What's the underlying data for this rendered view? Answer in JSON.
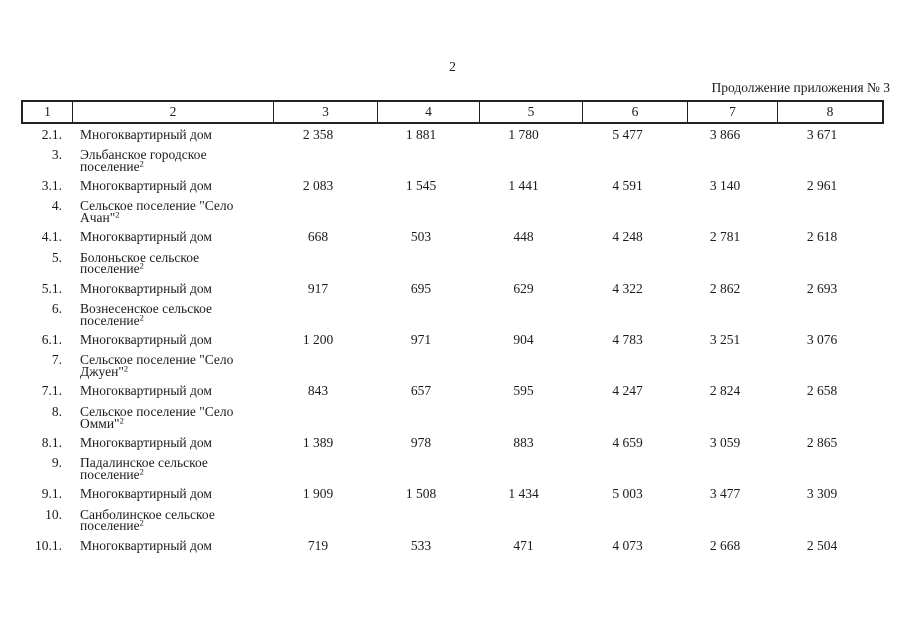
{
  "page": {
    "number": "2",
    "continuation_label": "Продолжение приложения № 3"
  },
  "table": {
    "column_numbers": [
      "1",
      "2",
      "3",
      "4",
      "5",
      "6",
      "7",
      "8"
    ],
    "rows": [
      {
        "num": "2.1.",
        "name": "Многоквартирный дом",
        "footnote": "",
        "values": [
          "2 358",
          "1 881",
          "1 780",
          "5 477",
          "3 866",
          "3 671"
        ]
      },
      {
        "num": "3.",
        "name": "Эльбанское городское поселение",
        "footnote": "2",
        "values": [
          "",
          "",
          "",
          "",
          "",
          ""
        ]
      },
      {
        "num": "3.1.",
        "name": "Многоквартирный дом",
        "footnote": "",
        "values": [
          "2 083",
          "1 545",
          "1 441",
          "4 591",
          "3 140",
          "2 961"
        ]
      },
      {
        "num": "4.",
        "name": "Сельское поселение \"Село Ачан\"",
        "footnote": "2",
        "values": [
          "",
          "",
          "",
          "",
          "",
          ""
        ]
      },
      {
        "num": "4.1.",
        "name": "Многоквартирный дом",
        "footnote": "",
        "values": [
          "668",
          "503",
          "448",
          "4 248",
          "2 781",
          "2 618"
        ]
      },
      {
        "num": "5.",
        "name": "Болоньское сельское поселение",
        "footnote": "2",
        "values": [
          "",
          "",
          "",
          "",
          "",
          ""
        ]
      },
      {
        "num": "5.1.",
        "name": "Многоквартирный дом",
        "footnote": "",
        "values": [
          "917",
          "695",
          "629",
          "4 322",
          "2 862",
          "2 693"
        ]
      },
      {
        "num": "6.",
        "name": "Вознесенское сельское поселение",
        "footnote": "2",
        "values": [
          "",
          "",
          "",
          "",
          "",
          ""
        ]
      },
      {
        "num": "6.1.",
        "name": "Многоквартирный дом",
        "footnote": "",
        "values": [
          "1 200",
          "971",
          "904",
          "4 783",
          "3 251",
          "3 076"
        ]
      },
      {
        "num": "7.",
        "name": "Сельское поселение \"Село Джуен\"",
        "footnote": "2",
        "values": [
          "",
          "",
          "",
          "",
          "",
          ""
        ]
      },
      {
        "num": "7.1.",
        "name": "Многоквартирный дом",
        "footnote": "",
        "values": [
          "843",
          "657",
          "595",
          "4 247",
          "2 824",
          "2 658"
        ]
      },
      {
        "num": "8.",
        "name": "Сельское поселение \"Село Омми\"",
        "footnote": "2",
        "values": [
          "",
          "",
          "",
          "",
          "",
          ""
        ]
      },
      {
        "num": "8.1.",
        "name": "Многоквартирный дом",
        "footnote": "",
        "values": [
          "1 389",
          "978",
          "883",
          "4 659",
          "3 059",
          "2 865"
        ]
      },
      {
        "num": "9.",
        "name": "Падалинское сельское поселение",
        "footnote": "2",
        "values": [
          "",
          "",
          "",
          "",
          "",
          ""
        ]
      },
      {
        "num": "9.1.",
        "name": "Многоквартирный дом",
        "footnote": "",
        "values": [
          "1 909",
          "1 508",
          "1 434",
          "5 003",
          "3 477",
          "3 309"
        ]
      },
      {
        "num": "10.",
        "name": "Санболинское сельское поселение",
        "footnote": "2",
        "values": [
          "",
          "",
          "",
          "",
          "",
          ""
        ]
      },
      {
        "num": "10.1.",
        "name": "Многоквартирный дом",
        "footnote": "",
        "values": [
          "719",
          "533",
          "471",
          "4 073",
          "2 668",
          "2 504"
        ]
      }
    ]
  }
}
